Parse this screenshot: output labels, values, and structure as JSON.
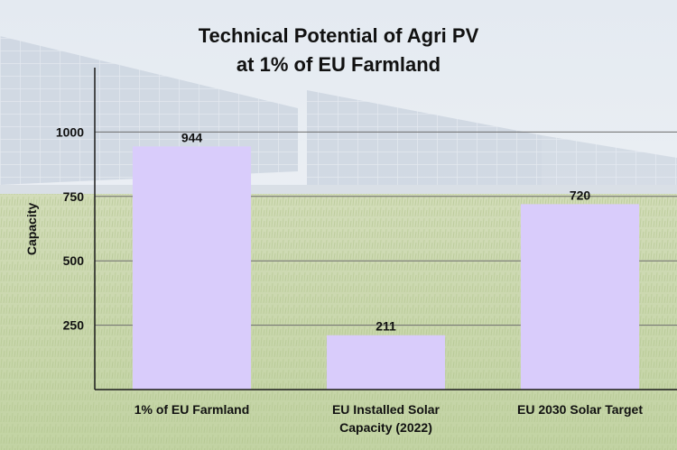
{
  "chart_data": {
    "type": "bar",
    "title_lines": [
      "Technical Potential of Agri PV",
      "at 1% of EU Farmland"
    ],
    "ylabel": "Capacity",
    "xlabel": "",
    "categories": [
      [
        "1% of EU Farmland"
      ],
      [
        "EU Installed Solar",
        "Capacity (2022)"
      ],
      [
        "EU 2030 Solar Target"
      ]
    ],
    "values": [
      944,
      211,
      720
    ],
    "data_labels": [
      "944",
      "211",
      "720"
    ],
    "yticks": [
      250,
      500,
      750,
      1000
    ],
    "ytick_labels": [
      "250",
      "500",
      "750",
      "1000"
    ],
    "ylim": [
      0,
      1250
    ],
    "grid": "horizontal",
    "legend": "none",
    "bar_color": "#d9ccfb"
  },
  "background": {
    "icon": "solar-panel-field-photo",
    "sky_color": "#e9eef3",
    "grass_color": "#c7d6a8"
  }
}
